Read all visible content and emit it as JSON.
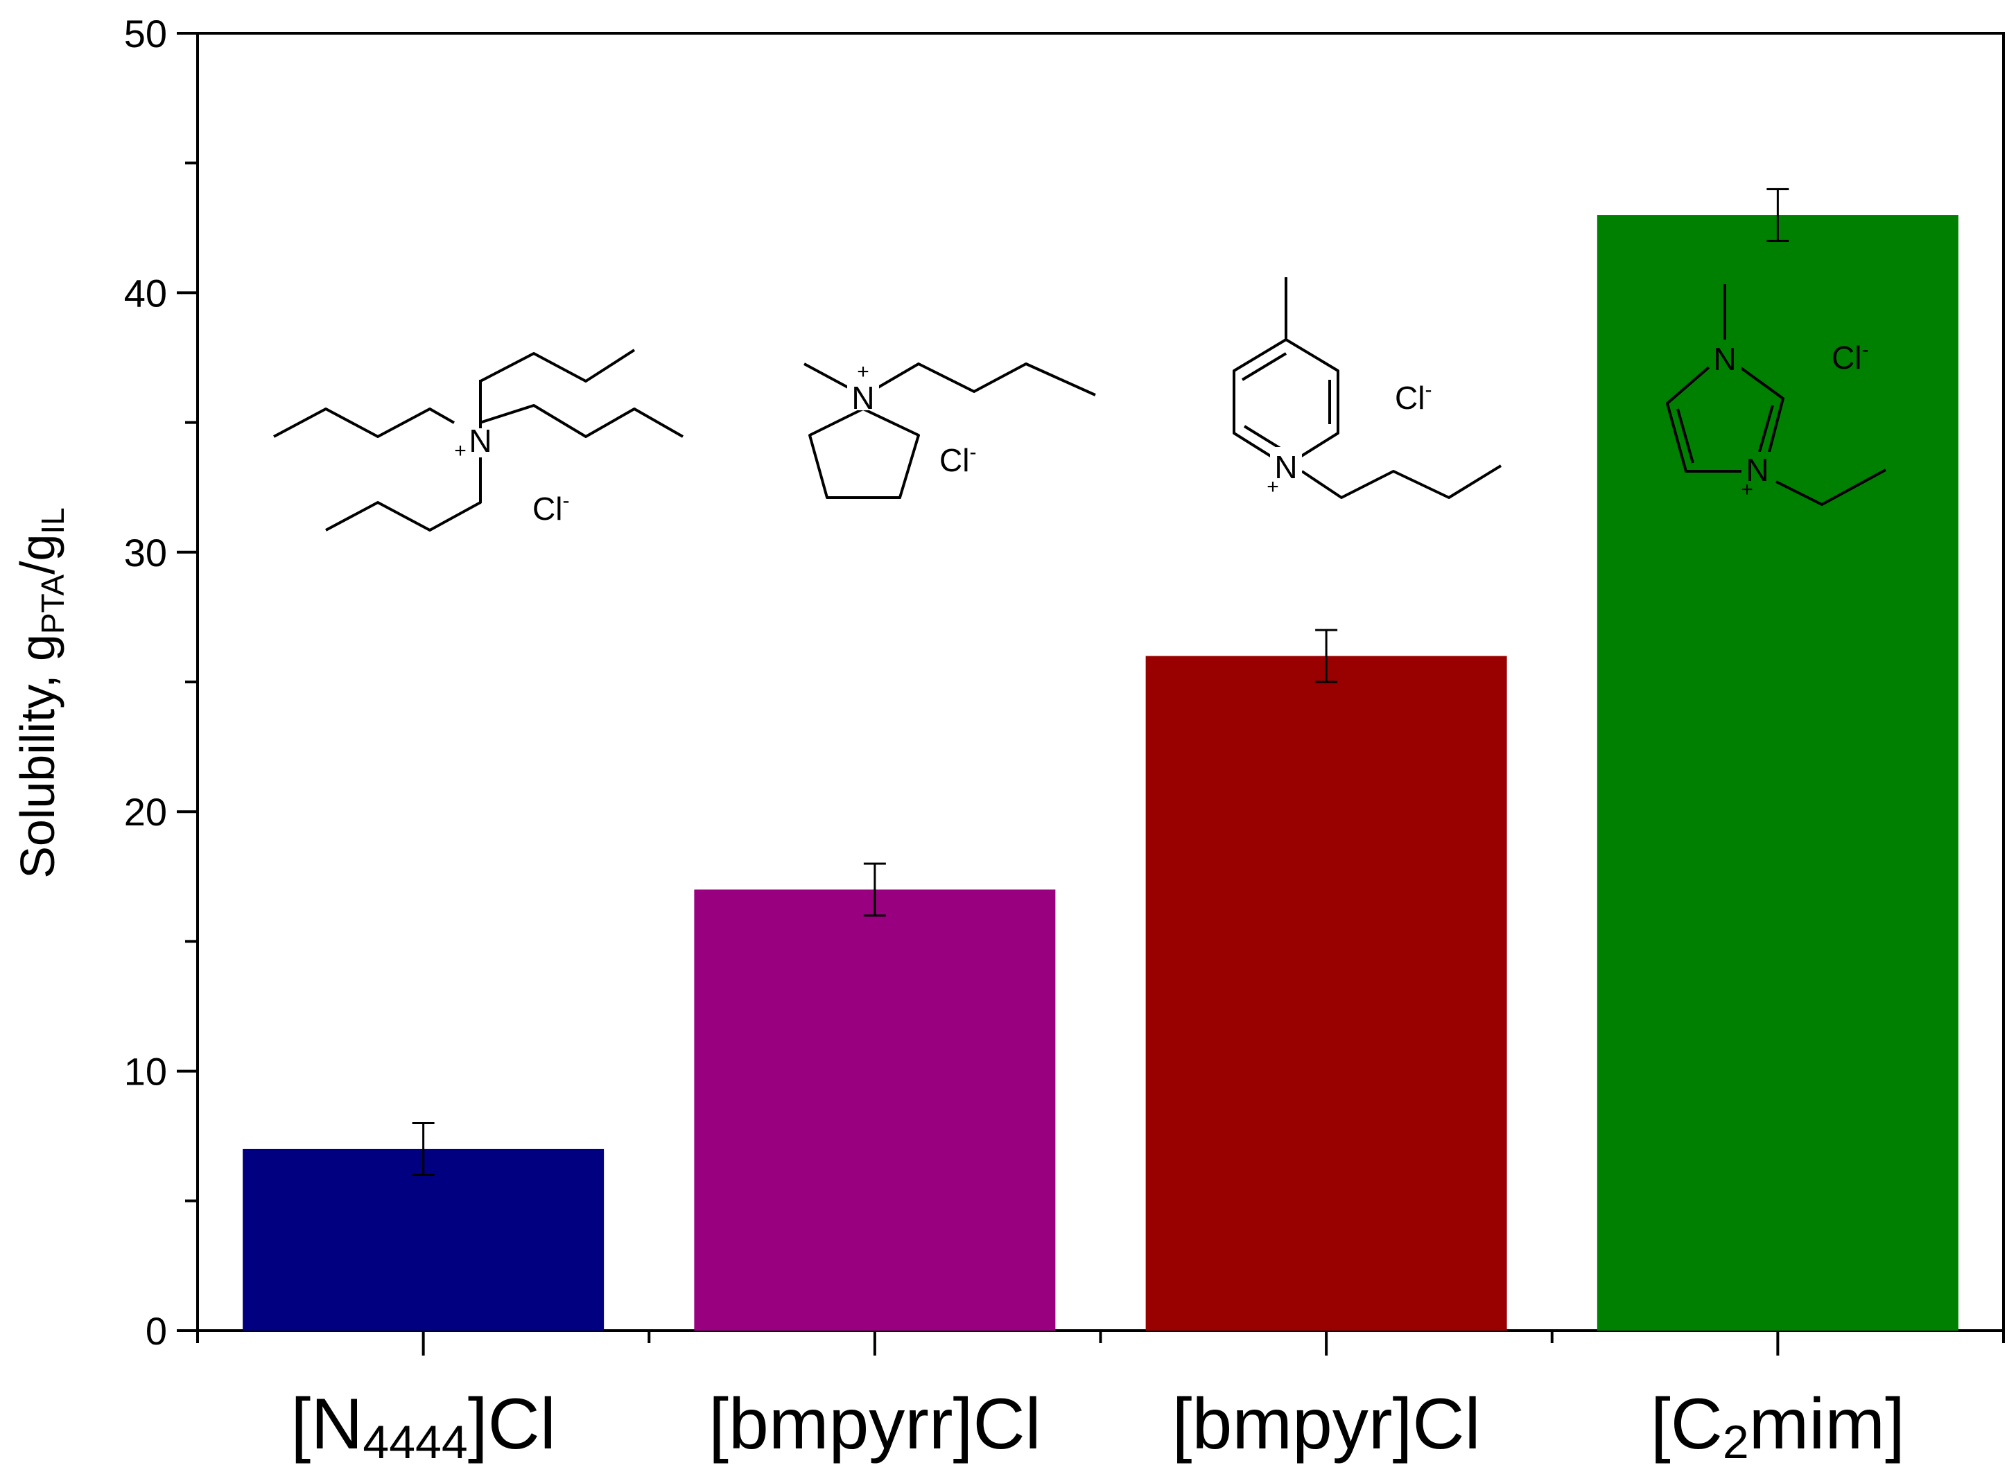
{
  "chart_data": {
    "type": "bar",
    "categories": [
      "[N4444]Cl",
      "[bmpyrr]Cl",
      "[bmpyr]Cl",
      "[C2mim]"
    ],
    "category_parts": [
      {
        "pre": "[N",
        "sub": "4444",
        "post": "]Cl"
      },
      {
        "pre": "[bmpyrr]Cl",
        "sub": "",
        "post": ""
      },
      {
        "pre": "[bmpyr]Cl",
        "sub": "",
        "post": ""
      },
      {
        "pre": "[C",
        "sub": "2",
        "post": "mim]"
      }
    ],
    "values": [
      7,
      17,
      26,
      43
    ],
    "errors": [
      1,
      1,
      1,
      1
    ],
    "colors": [
      "#000080",
      "#990080",
      "#990000",
      "#008000"
    ],
    "ylim": [
      0,
      50
    ],
    "yticks": [
      0,
      10,
      20,
      30,
      40,
      50
    ],
    "ylabel": {
      "main": "Solubility, g",
      "sub1": "PTA",
      "mid": "/g",
      "sub2": "IL"
    },
    "xlabel": "",
    "legend": "none",
    "grid": false,
    "annotations": {
      "atom_N": "N",
      "charge_plus": "+",
      "counterion_main": "Cl",
      "counterion_sup": "-"
    }
  }
}
